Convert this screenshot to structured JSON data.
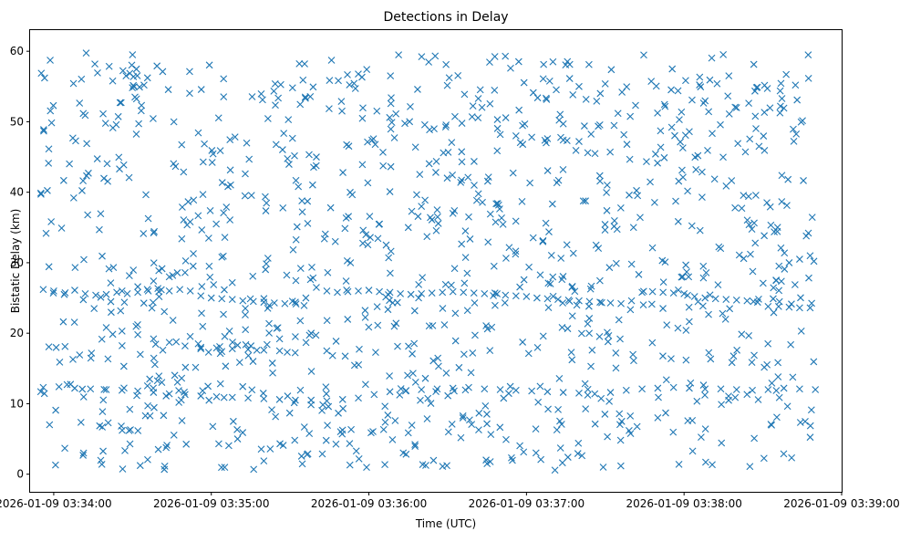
{
  "chart_data": {
    "type": "scatter",
    "title": "Detections in Delay",
    "xlabel": "Time (UTC)",
    "ylabel": "Bistatic Delay (km)",
    "marker": "x",
    "color": "#1f77b4",
    "grid": false,
    "legend": "none",
    "x_range": [
      "2026-01-09 03:33:51",
      "2026-01-09 03:39:00"
    ],
    "ylim": [
      -2.5,
      63.0
    ],
    "x_ticks": [
      "2026-01-09 03:34:00",
      "2026-01-09 03:35:00",
      "2026-01-09 03:36:00",
      "2026-01-09 03:37:00",
      "2026-01-09 03:38:00",
      "2026-01-09 03:39:00"
    ],
    "y_ticks": [
      "0",
      "10",
      "20",
      "30",
      "40",
      "50",
      "60"
    ],
    "data_time_range": [
      "2026-01-09 03:33:55",
      "2026-01-09 03:38:50"
    ],
    "series": [
      {
        "x": [
          "2026-01-09 03:33:56",
          "2026-01-09 03:34:00",
          "2026-01-09 03:34:04",
          "2026-01-09 03:34:08",
          "2026-01-09 03:34:12",
          "2026-01-09 03:34:16",
          "2026-01-09 03:34:20",
          "2026-01-09 03:34:24",
          "2026-01-09 03:34:28",
          "2026-01-09 03:34:32",
          "2026-01-09 03:34:36",
          "2026-01-09 03:34:40",
          "2026-01-09 03:34:44",
          "2026-01-09 03:34:48",
          "2026-01-09 03:34:52",
          "2026-01-09 03:34:56",
          "2026-01-09 03:35:00",
          "2026-01-09 03:35:04",
          "2026-01-09 03:35:08",
          "2026-01-09 03:35:12",
          "2026-01-09 03:35:16",
          "2026-01-09 03:35:20",
          "2026-01-09 03:35:24",
          "2026-01-09 03:35:28",
          "2026-01-09 03:35:32",
          "2026-01-09 03:35:36",
          "2026-01-09 03:35:40",
          "2026-01-09 03:35:44",
          "2026-01-09 03:35:48",
          "2026-01-09 03:35:52",
          "2026-01-09 03:35:56",
          "2026-01-09 03:36:00",
          "2026-01-09 03:36:04",
          "2026-01-09 03:36:08",
          "2026-01-09 03:36:12",
          "2026-01-09 03:36:16",
          "2026-01-09 03:36:20",
          "2026-01-09 03:36:24",
          "2026-01-09 03:36:28",
          "2026-01-09 03:36:32",
          "2026-01-09 03:36:36",
          "2026-01-09 03:36:40",
          "2026-01-09 03:36:44",
          "2026-01-09 03:36:48",
          "2026-01-09 03:36:52",
          "2026-01-09 03:36:56",
          "2026-01-09 03:37:00",
          "2026-01-09 03:37:04",
          "2026-01-09 03:37:08",
          "2026-01-09 03:37:12",
          "2026-01-09 03:37:16",
          "2026-01-09 03:37:20",
          "2026-01-09 03:37:24",
          "2026-01-09 03:37:28",
          "2026-01-09 03:37:32",
          "2026-01-09 03:37:36",
          "2026-01-09 03:37:40",
          "2026-01-09 03:37:44",
          "2026-01-09 03:37:48",
          "2026-01-09 03:37:52",
          "2026-01-09 03:37:56",
          "2026-01-09 03:38:00",
          "2026-01-09 03:38:04",
          "2026-01-09 03:38:08",
          "2026-01-09 03:38:12",
          "2026-01-09 03:38:16",
          "2026-01-09 03:38:20",
          "2026-01-09 03:38:24",
          "2026-01-09 03:38:28",
          "2026-01-09 03:38:32",
          "2026-01-09 03:38:36",
          "2026-01-09 03:38:40",
          "2026-01-09 03:38:44",
          "2026-01-09 03:38:48",
          "2026-01-09 03:33:56",
          "2026-01-09 03:34:02",
          "2026-01-09 03:34:08",
          "2026-01-09 03:34:14",
          "2026-01-09 03:34:20",
          "2026-01-09 03:34:26",
          "2026-01-09 03:34:32",
          "2026-01-09 03:34:38",
          "2026-01-09 03:34:44",
          "2026-01-09 03:34:50",
          "2026-01-09 03:34:56",
          "2026-01-09 03:35:02",
          "2026-01-09 03:35:08",
          "2026-01-09 03:35:14",
          "2026-01-09 03:35:20",
          "2026-01-09 03:35:26",
          "2026-01-09 03:35:32",
          "2026-01-09 03:35:38",
          "2026-01-09 03:35:44",
          "2026-01-09 03:35:50",
          "2026-01-09 03:35:56",
          "2026-01-09 03:36:02",
          "2026-01-09 03:36:08",
          "2026-01-09 03:36:14",
          "2026-01-09 03:36:20",
          "2026-01-09 03:36:26",
          "2026-01-09 03:36:32",
          "2026-01-09 03:36:38",
          "2026-01-09 03:36:44",
          "2026-01-09 03:36:50",
          "2026-01-09 03:36:56",
          "2026-01-09 03:37:02",
          "2026-01-09 03:37:08",
          "2026-01-09 03:37:14",
          "2026-01-09 03:37:20",
          "2026-01-09 03:37:26",
          "2026-01-09 03:37:32",
          "2026-01-09 03:37:38",
          "2026-01-09 03:37:44",
          "2026-01-09 03:37:50",
          "2026-01-09 03:37:56",
          "2026-01-09 03:38:02",
          "2026-01-09 03:38:08",
          "2026-01-09 03:38:14",
          "2026-01-09 03:38:20",
          "2026-01-09 03:38:26",
          "2026-01-09 03:38:32",
          "2026-01-09 03:38:38",
          "2026-01-09 03:38:44",
          "2026-01-09 03:38:50",
          "2026-01-09 03:34:20",
          "2026-01-09 03:34:26",
          "2026-01-09 03:34:32",
          "2026-01-09 03:34:38",
          "2026-01-09 03:34:44",
          "2026-01-09 03:34:50",
          "2026-01-09 03:34:56",
          "2026-01-09 03:34:26",
          "2026-01-09 03:34:32",
          "2026-01-09 03:34:38",
          "2026-01-09 03:34:44",
          "2026-01-09 03:34:50",
          "2026-01-09 03:34:56",
          "2026-01-09 03:35:02",
          "2026-01-09 03:35:08",
          "2026-01-09 03:35:14",
          "2026-01-09 03:35:20",
          "2026-01-09 03:35:26",
          "2026-01-09 03:35:04",
          "2026-01-09 03:35:10",
          "2026-01-09 03:35:26",
          "2026-01-09 03:35:32",
          "2026-01-09 03:35:38",
          "2026-01-09 03:36:50",
          "2026-01-09 03:36:56",
          "2026-01-09 03:37:02",
          "2026-01-09 03:37:08",
          "2026-01-09 03:37:14",
          "2026-01-09 03:37:20",
          "2026-01-09 03:36:20",
          "2026-01-09 03:36:26",
          "2026-01-09 03:36:32",
          "2026-01-09 03:36:38",
          "2026-01-09 03:38:40",
          "2026-01-09 03:38:44",
          "2026-01-09 03:38:48",
          "2026-01-09 03:34:30",
          "2026-01-09 03:35:10",
          "2026-01-09 03:35:40",
          "2026-01-09 03:36:15",
          "2026-01-09 03:36:45",
          "2026-01-09 03:37:20",
          "2026-01-09 03:37:50",
          "2026-01-09 03:38:20"
        ],
        "y": [
          26.2,
          26.0,
          25.5,
          26.1,
          25.6,
          25.4,
          25.5,
          25.8,
          25.6,
          25.8,
          26.0,
          25.9,
          26.0,
          26.2,
          26.0,
          25.3,
          25.0,
          24.9,
          24.8,
          24.6,
          24.5,
          24.4,
          24.3,
          24.2,
          24.4,
          25.0,
          26.5,
          26.0,
          25.8,
          25.9,
          26.0,
          26.1,
          25.9,
          25.8,
          25.6,
          25.5,
          25.6,
          25.7,
          25.8,
          25.9,
          25.8,
          25.7,
          25.6,
          25.7,
          25.4,
          25.3,
          25.2,
          25.0,
          24.9,
          24.8,
          24.7,
          24.6,
          24.5,
          24.4,
          24.3,
          24.2,
          24.6,
          25.8,
          25.9,
          25.8,
          25.7,
          25.6,
          25.2,
          25.0,
          24.9,
          24.8,
          24.7,
          24.6,
          24.4,
          23.8,
          23.8,
          23.7,
          23.6,
          23.6,
          12.3,
          12.4,
          12.2,
          12.1,
          12.0,
          11.9,
          11.8,
          11.6,
          11.4,
          11.3,
          11.1,
          11.0,
          10.9,
          10.8,
          10.7,
          10.6,
          10.5,
          10.5,
          10.4,
          10.6,
          10.8,
          11.3,
          11.7,
          11.8,
          12.0,
          12.1,
          12.2,
          12.3,
          12.1,
          12.0,
          11.9,
          11.8,
          11.7,
          11.6,
          11.5,
          11.4,
          11.6,
          11.9,
          12.1,
          12.2,
          12.3,
          12.2,
          12.1,
          12.1,
          12.0,
          11.9,
          12.0,
          12.2,
          12.1,
          12.0,
          20.8,
          20.3,
          19.8,
          19.2,
          18.7,
          18.2,
          17.8,
          26.0,
          26.6,
          27.4,
          28.0,
          28.6,
          18.0,
          17.9,
          17.8,
          17.7,
          17.6,
          17.5,
          17.4,
          18.3,
          19.2,
          19.5,
          20.0,
          48.2,
          48.0,
          47.8,
          47.6,
          47.4,
          47.2,
          38.0,
          37.5,
          37.0,
          36.5,
          30.0,
          30.5,
          31.0,
          59.5,
          5.0,
          45.0,
          35.0,
          1.5,
          55.0,
          8.0,
          52.0
        ]
      }
    ]
  }
}
